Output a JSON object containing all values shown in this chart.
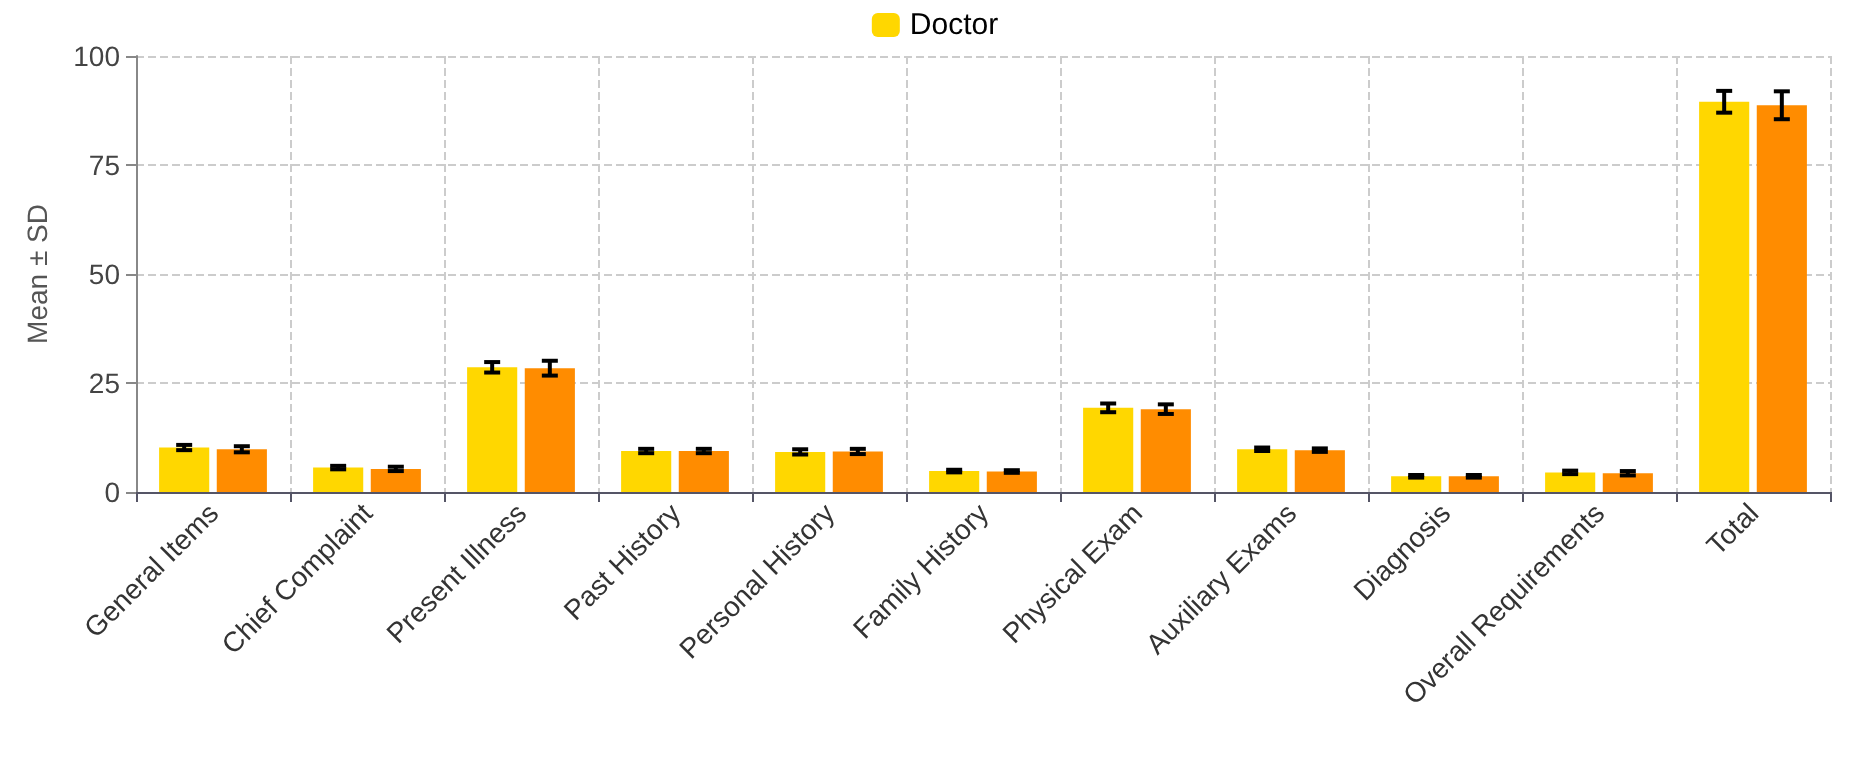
{
  "chart_data": {
    "type": "bar",
    "ylabel": "Mean ± SD",
    "categories": [
      "General Items",
      "Chief Complaint",
      "Present Illness",
      "Past History",
      "Personal History",
      "Family History",
      "Physical Exam",
      "Auxiliary Exams",
      "Diagnosis",
      "Overall Requirements",
      "Total"
    ],
    "series": [
      {
        "name": "Doctor",
        "color": "#ffd700",
        "values": [
          10.2,
          5.6,
          28.6,
          9.4,
          9.2,
          4.8,
          19.3,
          9.8,
          3.6,
          4.5,
          89.5
        ],
        "errors": [
          0.6,
          0.4,
          1.2,
          0.5,
          0.6,
          0.3,
          1.0,
          0.4,
          0.3,
          0.4,
          2.5
        ]
      },
      {
        "color": "#ff8c00",
        "values": [
          9.8,
          5.3,
          28.4,
          9.4,
          9.3,
          4.7,
          19.0,
          9.6,
          3.6,
          4.3,
          88.7
        ],
        "errors": [
          0.7,
          0.5,
          1.7,
          0.5,
          0.6,
          0.3,
          1.1,
          0.4,
          0.3,
          0.5,
          3.2
        ]
      }
    ],
    "ylim": [
      0,
      100
    ],
    "yticks": [
      0,
      25,
      50,
      75,
      100
    ],
    "grid": true,
    "legend": "top"
  }
}
